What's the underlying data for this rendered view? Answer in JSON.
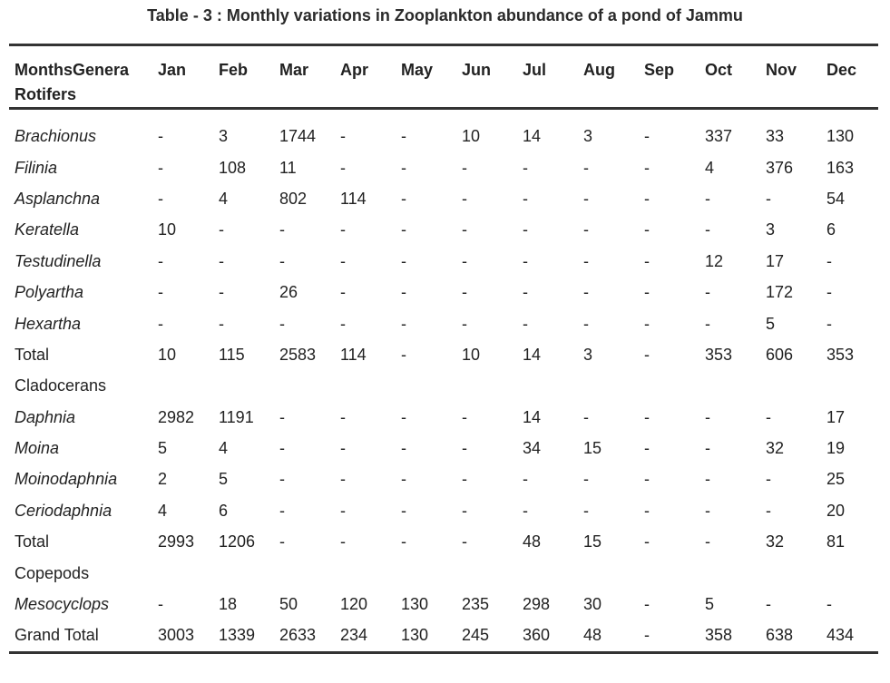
{
  "title": "Table - 3 : Monthly variations in Zooplankton abundance of a pond of Jammu",
  "header": {
    "stub_line1": "MonthsGenera",
    "stub_line2": "Rotifers",
    "months": [
      "Jan",
      "Feb",
      "Mar",
      "Apr",
      "May",
      "Jun",
      "Jul",
      "Aug",
      "Sep",
      "Oct",
      "Nov",
      "Dec"
    ]
  },
  "rows": [
    {
      "label": "Brachionus",
      "italic": true,
      "values": [
        "-",
        "3",
        "1744",
        "-",
        "-",
        "10",
        "14",
        "3",
        "-",
        "337",
        "33",
        "130"
      ]
    },
    {
      "label": "Filinia",
      "italic": true,
      "values": [
        "-",
        "108",
        "11",
        "-",
        "-",
        "-",
        "-",
        "-",
        "-",
        "4",
        "376",
        "163"
      ]
    },
    {
      "label": "Asplanchna",
      "italic": true,
      "values": [
        "-",
        "4",
        "802",
        "114",
        "-",
        "-",
        "-",
        "-",
        "-",
        "-",
        "-",
        "54"
      ]
    },
    {
      "label": "Keratella",
      "italic": true,
      "values": [
        "10",
        "-",
        "-",
        "-",
        "-",
        "-",
        "-",
        "-",
        "-",
        "-",
        "3",
        "6"
      ]
    },
    {
      "label": "Testudinella",
      "italic": true,
      "values": [
        "-",
        "-",
        "-",
        "-",
        "-",
        "-",
        "-",
        "-",
        "-",
        "12",
        "17",
        "-"
      ]
    },
    {
      "label": "Polyartha",
      "italic": true,
      "values": [
        "-",
        "-",
        "26",
        "-",
        "-",
        "-",
        "-",
        "-",
        "-",
        "-",
        "172",
        "-"
      ]
    },
    {
      "label": "Hexartha",
      "italic": true,
      "values": [
        "-",
        "-",
        "-",
        "-",
        "-",
        "-",
        "-",
        "-",
        "-",
        "-",
        "5",
        "-"
      ]
    },
    {
      "label": "Total",
      "italic": false,
      "values": [
        "10",
        "115",
        "2583",
        "114",
        "-",
        "10",
        "14",
        "3",
        "-",
        "353",
        "606",
        "353"
      ]
    },
    {
      "label": "Cladocerans",
      "italic": false,
      "section": true,
      "values": []
    },
    {
      "label": "Daphnia",
      "italic": true,
      "values": [
        "2982",
        "1191",
        "-",
        "-",
        "-",
        "-",
        "14",
        "-",
        "-",
        "-",
        "-",
        "17"
      ]
    },
    {
      "label": "Moina",
      "italic": true,
      "values": [
        "5",
        "4",
        "-",
        "-",
        "-",
        "-",
        "34",
        "15",
        "-",
        "-",
        "32",
        "19"
      ]
    },
    {
      "label": "Moinodaphnia",
      "italic": true,
      "values": [
        "2",
        "5",
        "-",
        "-",
        "-",
        "-",
        "-",
        "-",
        "-",
        "-",
        "-",
        "25"
      ]
    },
    {
      "label": "Ceriodaphnia",
      "italic": true,
      "values": [
        "4",
        "6",
        "-",
        "-",
        "-",
        "-",
        "-",
        "-",
        "-",
        "-",
        "-",
        "20"
      ]
    },
    {
      "label": "Total",
      "italic": false,
      "values": [
        "2993",
        "1206",
        "-",
        "-",
        "-",
        "-",
        "48",
        "15",
        "-",
        "-",
        "32",
        "81"
      ]
    },
    {
      "label": "Copepods",
      "italic": false,
      "section": true,
      "values": []
    },
    {
      "label": "Mesocyclops",
      "italic": true,
      "values": [
        "-",
        "18",
        "50",
        "120",
        "130",
        "235",
        "298",
        "30",
        "-",
        "5",
        "-",
        "-"
      ]
    },
    {
      "label": "Grand Total",
      "italic": false,
      "values": [
        "3003",
        "1339",
        "2633",
        "234",
        "130",
        "245",
        "360",
        "48",
        "-",
        "358",
        "638",
        "434"
      ]
    }
  ]
}
